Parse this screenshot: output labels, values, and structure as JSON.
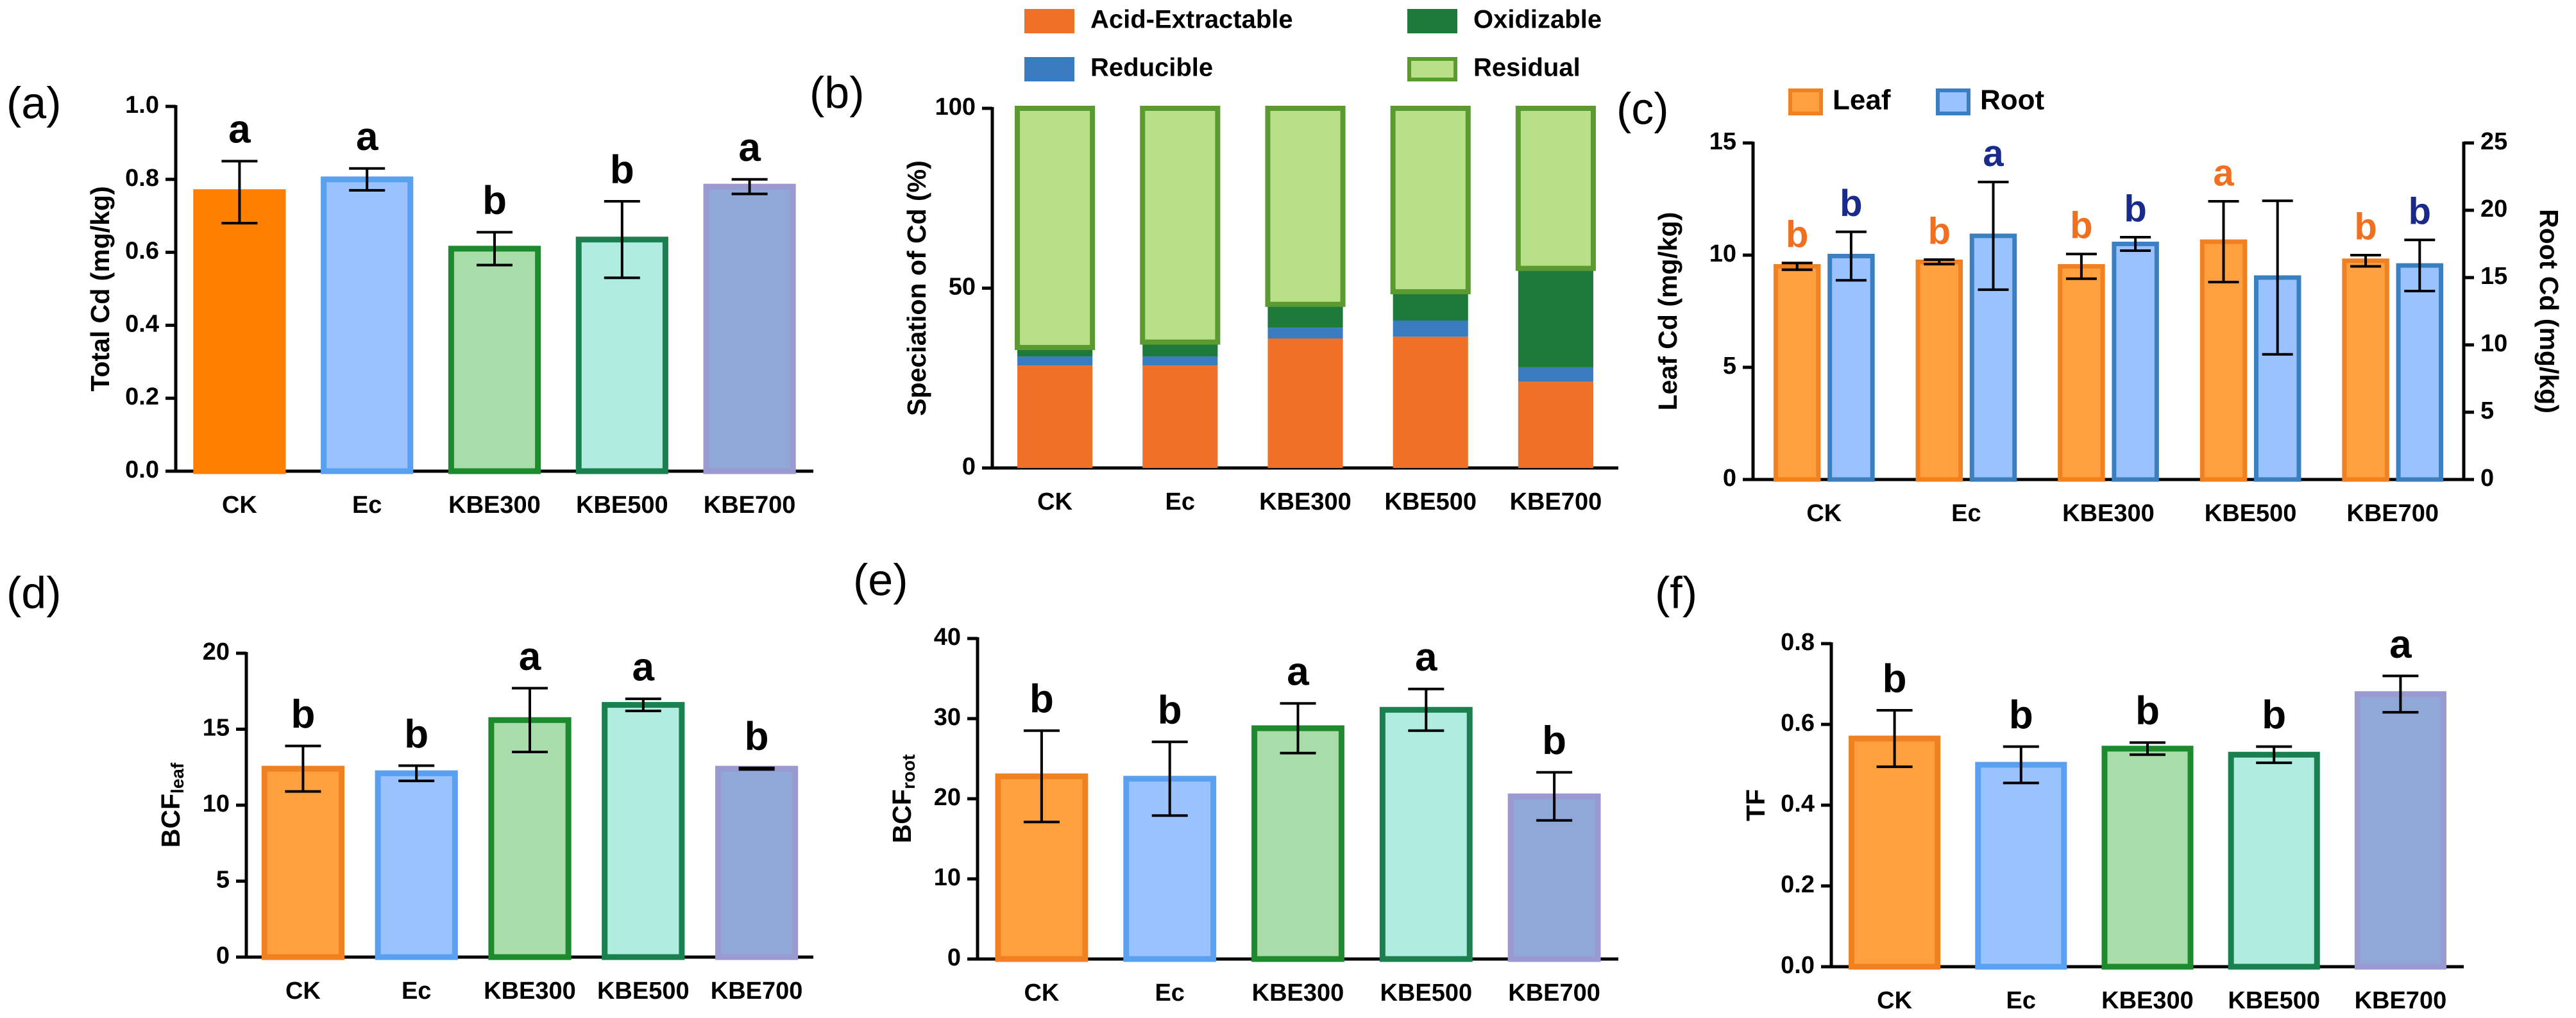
{
  "chart_data": [
    {
      "type": "bar",
      "label": "(a)",
      "ylabel": "Total Cd (mg/kg)",
      "categories": [
        "CK",
        "Ec",
        "KBE300",
        "KBE500",
        "KBE700"
      ],
      "values": [
        0.765,
        0.8,
        0.61,
        0.635,
        0.78
      ],
      "errors": [
        0.085,
        0.03,
        0.045,
        0.105,
        0.02
      ],
      "letters": [
        "a",
        "a",
        "b",
        "b",
        "a"
      ],
      "colors": [
        "#ff7f00",
        "#99c2ff",
        "#a8dca8",
        "#b0ece0",
        "#8fa8d8"
      ],
      "edge_colors": [
        "#ff7f00",
        "#5aa0f0",
        "#1e8a2e",
        "#1a8050",
        "#9a9ad0"
      ],
      "ylim": [
        0,
        1
      ],
      "yticks": [
        {
          "value": 0,
          "label": "0.0"
        },
        0.2,
        0.4,
        0.6,
        0.8,
        {
          "value": 1,
          "label": "1.0"
        }
      ]
    },
    {
      "type": "stacked",
      "label": "(b)",
      "ylabel": "Speciation of Cd (%)",
      "categories": [
        "CK",
        "Ec",
        "KBE300",
        "KBE500",
        "KBE700"
      ],
      "series": [
        {
          "name": "Acid-Extractable",
          "color": "#f07028",
          "edge_color": "#f07028",
          "values": [
            28.5,
            28.5,
            36,
            36.5,
            24
          ]
        },
        {
          "name": "Reducible",
          "color": "#3a7cc0",
          "edge_color": "#3a7cc0",
          "values": [
            2.5,
            2.5,
            3,
            4.5,
            4
          ]
        },
        {
          "name": "Oxidizable",
          "color": "#1e7a3a",
          "edge_color": "#1e7a3a",
          "values": [
            2.5,
            4,
            6.5,
            8,
            27.5
          ]
        },
        {
          "name": "Residual",
          "color": "#b8e088",
          "edge_color": "#5a9a30",
          "values": [
            66.5,
            65,
            54.5,
            51,
            44.5
          ]
        }
      ],
      "ylim": [
        0,
        100
      ],
      "yticks": [
        0,
        50,
        100
      ]
    },
    {
      "type": "grouped",
      "label": "(c)",
      "ylabel": "Leaf Cd (mg/kg)",
      "y2label": "Root Cd (mg/kg)",
      "categories": [
        "CK",
        "Ec",
        "KBE300",
        "KBE500",
        "KBE700"
      ],
      "series": [
        {
          "name": "Leaf",
          "color": "#ffa040",
          "edge_color": "#f08020",
          "letter_color": "#f07020",
          "axis": "y",
          "values": [
            9.5,
            9.7,
            9.5,
            10.6,
            9.75
          ],
          "errors": [
            0.15,
            0.1,
            0.55,
            1.8,
            0.25
          ],
          "letters": [
            "b",
            "b",
            "b",
            "a",
            "b"
          ]
        },
        {
          "name": "Root",
          "color": "#99c2ff",
          "edge_color": "#3a80c0",
          "letter_color": "#1a2a8a",
          "axis": "y2",
          "values": [
            16.6,
            18.1,
            17.5,
            15.0,
            15.9
          ],
          "errors": [
            1.8,
            4.0,
            0.5,
            5.7,
            1.9
          ],
          "letters": [
            "b",
            "a",
            "b",
            null,
            "b"
          ]
        }
      ],
      "ylim": [
        0,
        15
      ],
      "yticks": [
        0,
        5,
        10,
        15
      ],
      "y2lim": [
        0,
        25
      ],
      "y2ticks": [
        0,
        5,
        10,
        15,
        20,
        25
      ]
    },
    {
      "type": "bar",
      "label": "(d)",
      "ylabel": "BCF",
      "ylabel_subscript": "leaf",
      "categories": [
        "CK",
        "Ec",
        "KBE300",
        "KBE500",
        "KBE700"
      ],
      "values": [
        12.4,
        12.1,
        15.6,
        16.6,
        12.4
      ],
      "errors": [
        1.5,
        0.5,
        2.1,
        0.4,
        0.05
      ],
      "letters": [
        "b",
        "b",
        "a",
        "a",
        "b"
      ],
      "colors": [
        "#ffa040",
        "#99c2ff",
        "#a8dca8",
        "#b0ece0",
        "#8fa8d8"
      ],
      "edge_colors": [
        "#f08020",
        "#5aa0f0",
        "#1e8a2e",
        "#1a8050",
        "#9a9ad0"
      ],
      "ylim": [
        0,
        20
      ],
      "yticks": [
        0,
        5,
        10,
        15,
        20
      ]
    },
    {
      "type": "bar",
      "label": "(e)",
      "ylabel": "BCF",
      "ylabel_subscript": "root",
      "categories": [
        "CK",
        "Ec",
        "KBE300",
        "KBE500",
        "KBE700"
      ],
      "values": [
        22.8,
        22.5,
        28.8,
        31.1,
        20.3
      ],
      "errors": [
        5.7,
        4.6,
        3.1,
        2.6,
        3.0
      ],
      "letters": [
        "b",
        "b",
        "a",
        "a",
        "b"
      ],
      "colors": [
        "#ffa040",
        "#99c2ff",
        "#a8dca8",
        "#b0ece0",
        "#8fa8d8"
      ],
      "edge_colors": [
        "#f08020",
        "#5aa0f0",
        "#1e8a2e",
        "#1a8050",
        "#9a9ad0"
      ],
      "ylim": [
        0,
        40
      ],
      "yticks": [
        0,
        10,
        20,
        30,
        40
      ]
    },
    {
      "type": "bar",
      "label": "(f)",
      "ylabel": "TF",
      "categories": [
        "CK",
        "Ec",
        "KBE300",
        "KBE500",
        "KBE700"
      ],
      "values": [
        0.565,
        0.5,
        0.54,
        0.525,
        0.675
      ],
      "errors": [
        0.07,
        0.045,
        0.015,
        0.02,
        0.045
      ],
      "letters": [
        "b",
        "b",
        "b",
        "b",
        "a"
      ],
      "colors": [
        "#ffa040",
        "#99c2ff",
        "#a8dca8",
        "#b0ece0",
        "#8fa8d8"
      ],
      "edge_colors": [
        "#f08020",
        "#5aa0f0",
        "#1e8a2e",
        "#1a8050",
        "#9a9ad0"
      ],
      "ylim": [
        0,
        0.8
      ],
      "yticks": [
        {
          "value": 0,
          "label": "0.0"
        },
        0.2,
        0.4,
        0.6,
        0.8
      ]
    }
  ]
}
